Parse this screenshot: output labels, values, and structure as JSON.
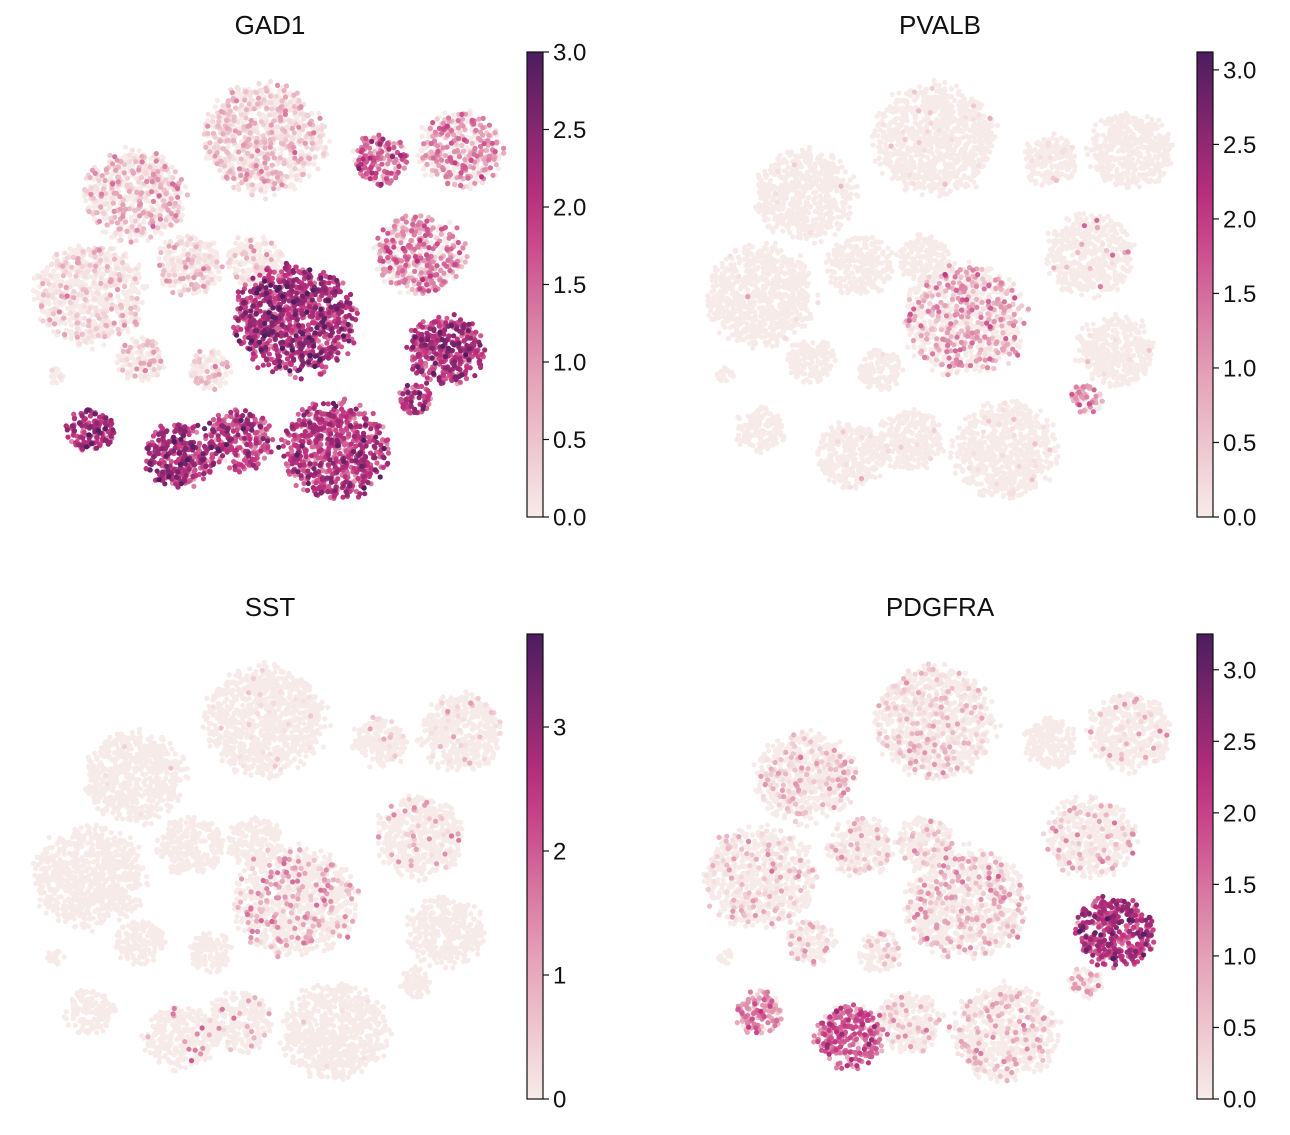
{
  "colors": {
    "low": "#f7ebe9",
    "mid1": "#e39ab2",
    "mid2": "#c2307f",
    "high": "#4b1d5e"
  },
  "chart_data": {
    "type": "scatter",
    "clusters": [
      {
        "id": "c1",
        "x": 23.0,
        "y": 36.5,
        "r": 5.5,
        "GAD1": [
          0.35,
          0.5
        ],
        "PVALB": [
          0.0,
          0.02
        ],
        "SST": [
          0.0,
          0.03
        ],
        "PDGFRA": [
          0.3,
          0.25
        ]
      },
      {
        "id": "c2",
        "x": 10.0,
        "y": 31.0,
        "r": 4.5,
        "GAD1": [
          0.5,
          0.45
        ],
        "PVALB": [
          0.0,
          0.01
        ],
        "SST": [
          0.0,
          0.01
        ],
        "PDGFRA": [
          0.4,
          0.25
        ]
      },
      {
        "id": "c3",
        "x": 5.5,
        "y": 21.0,
        "r": 5.0,
        "GAD1": [
          0.25,
          0.3
        ],
        "PVALB": [
          0.0,
          0.01
        ],
        "SST": [
          0.0,
          0.0
        ],
        "PDGFRA": [
          0.3,
          0.2
        ]
      },
      {
        "id": "c4",
        "x": 15.5,
        "y": 24.0,
        "r": 3.0,
        "GAD1": [
          0.3,
          0.3
        ],
        "PVALB": [
          0.0,
          0.0
        ],
        "SST": [
          0.0,
          0.0
        ],
        "PDGFRA": [
          0.3,
          0.2
        ]
      },
      {
        "id": "c5",
        "x": 22.0,
        "y": 24.5,
        "r": 2.5,
        "GAD1": [
          0.3,
          0.3
        ],
        "PVALB": [
          0.0,
          0.0
        ],
        "SST": [
          0.0,
          0.0
        ],
        "PDGFRA": [
          0.3,
          0.15
        ]
      },
      {
        "id": "c6",
        "x": 26.0,
        "y": 18.5,
        "r": 5.5,
        "GAD1": [
          2.0,
          1.0
        ],
        "PVALB": [
          0.8,
          0.35
        ],
        "SST": [
          0.9,
          0.2
        ],
        "PDGFRA": [
          0.6,
          0.25
        ]
      },
      {
        "id": "c7",
        "x": 34.5,
        "y": 34.5,
        "r": 2.5,
        "GAD1": [
          1.4,
          0.8
        ],
        "PVALB": [
          0.0,
          0.05
        ],
        "SST": [
          0.4,
          0.05
        ],
        "PDGFRA": [
          0.0,
          0.0
        ]
      },
      {
        "id": "c8",
        "x": 42.5,
        "y": 35.5,
        "r": 3.8,
        "GAD1": [
          1.0,
          0.5
        ],
        "PVALB": [
          0.0,
          0.0
        ],
        "SST": [
          0.4,
          0.05
        ],
        "PDGFRA": [
          0.5,
          0.1
        ]
      },
      {
        "id": "c9",
        "x": 38.5,
        "y": 25.0,
        "r": 4.0,
        "GAD1": [
          1.1,
          0.55
        ],
        "PVALB": [
          1.0,
          0.04
        ],
        "SST": [
          0.8,
          0.1
        ],
        "PDGFRA": [
          0.5,
          0.15
        ]
      },
      {
        "id": "c10",
        "x": 41.0,
        "y": 15.5,
        "r": 3.5,
        "GAD1": [
          1.9,
          1.0
        ],
        "PVALB": [
          0.0,
          0.02
        ],
        "SST": [
          0.0,
          0.0
        ],
        "PDGFRA": [
          2.1,
          1.0
        ]
      },
      {
        "id": "c11",
        "x": 38.0,
        "y": 10.5,
        "r": 1.5,
        "GAD1": [
          1.8,
          1.0
        ],
        "PVALB": [
          1.0,
          0.6
        ],
        "SST": [
          0.0,
          0.0
        ],
        "PDGFRA": [
          0.8,
          0.3
        ]
      },
      {
        "id": "c12",
        "x": 5.5,
        "y": 7.5,
        "r": 2.2,
        "GAD1": [
          2.0,
          1.0
        ],
        "PVALB": [
          0.0,
          0.0
        ],
        "SST": [
          0.0,
          0.0
        ],
        "PDGFRA": [
          1.2,
          0.8
        ]
      },
      {
        "id": "c13",
        "x": 14.5,
        "y": 5.0,
        "r": 3.2,
        "GAD1": [
          2.0,
          1.0
        ],
        "PVALB": [
          0.0,
          0.02
        ],
        "SST": [
          1.2,
          0.06
        ],
        "PDGFRA": [
          1.5,
          0.9
        ]
      },
      {
        "id": "c14",
        "x": 20.5,
        "y": 6.5,
        "r": 3.0,
        "GAD1": [
          1.8,
          0.9
        ],
        "PVALB": [
          0.0,
          0.02
        ],
        "SST": [
          1.0,
          0.08
        ],
        "PDGFRA": [
          0.5,
          0.15
        ]
      },
      {
        "id": "c15",
        "x": 30.0,
        "y": 5.5,
        "r": 4.8,
        "GAD1": [
          1.8,
          0.95
        ],
        "PVALB": [
          0.0,
          0.03
        ],
        "SST": [
          0.0,
          0.01
        ],
        "PDGFRA": [
          0.6,
          0.2
        ]
      },
      {
        "id": "c16",
        "x": 10.5,
        "y": 14.5,
        "r": 2.2,
        "GAD1": [
          0.3,
          0.3
        ],
        "PVALB": [
          0.0,
          0.0
        ],
        "SST": [
          0.0,
          0.0
        ],
        "PDGFRA": [
          0.4,
          0.2
        ]
      },
      {
        "id": "c17",
        "x": 17.5,
        "y": 13.5,
        "r": 2.0,
        "GAD1": [
          0.3,
          0.3
        ],
        "PVALB": [
          0.0,
          0.01
        ],
        "SST": [
          0.0,
          0.0
        ],
        "PDGFRA": [
          0.4,
          0.15
        ]
      },
      {
        "id": "c18",
        "x": 2.0,
        "y": 13.0,
        "r": 0.8,
        "GAD1": [
          0.2,
          0.2
        ],
        "PVALB": [
          0.0,
          0.0
        ],
        "SST": [
          0.0,
          0.0
        ],
        "PDGFRA": [
          0.2,
          0.1
        ]
      }
    ],
    "panels": [
      {
        "title": "GAD1",
        "vmin": 0,
        "vmax": 3.0,
        "ticks": [
          "0.0",
          "0.5",
          "1.0",
          "1.5",
          "2.0",
          "2.5",
          "3.0"
        ],
        "tick_values": [
          0,
          0.5,
          1,
          1.5,
          2,
          2.5,
          3
        ]
      },
      {
        "title": "PVALB",
        "vmin": 0,
        "vmax": 3.12,
        "ticks": [
          "0.0",
          "0.5",
          "1.0",
          "1.5",
          "2.0",
          "2.5",
          "3.0"
        ],
        "tick_values": [
          0,
          0.5,
          1,
          1.5,
          2,
          2.5,
          3
        ]
      },
      {
        "title": "SST",
        "vmin": 0,
        "vmax": 3.75,
        "ticks": [
          "0",
          "1",
          "2",
          "3"
        ],
        "tick_values": [
          0,
          1,
          2,
          3
        ]
      },
      {
        "title": "PDGFRA",
        "vmin": 0,
        "vmax": 3.25,
        "ticks": [
          "0.0",
          "0.5",
          "1.0",
          "1.5",
          "2.0",
          "2.5",
          "3.0"
        ],
        "tick_values": [
          0,
          0.5,
          1,
          1.5,
          2,
          2.5,
          3
        ]
      }
    ]
  }
}
